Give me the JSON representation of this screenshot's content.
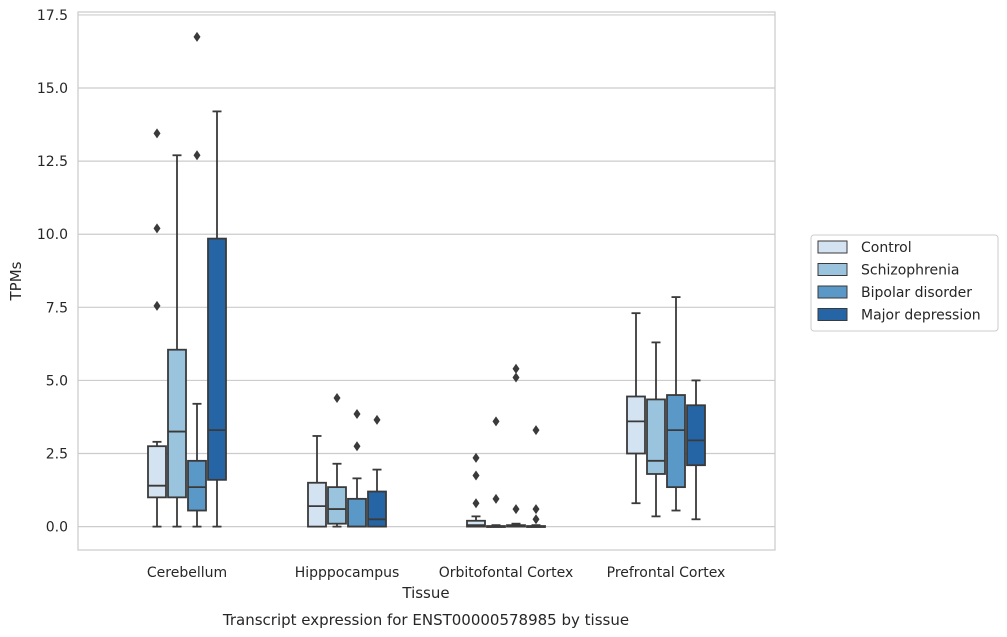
{
  "chart_data": {
    "type": "box",
    "title": "",
    "caption": "Transcript expression for ENST00000578985 by tissue",
    "xlabel": "Tissue",
    "ylabel": "TPMs",
    "ylim": [
      -0.8,
      17.6
    ],
    "yticks": [
      "0.0",
      "2.5",
      "5.0",
      "7.5",
      "10.0",
      "12.5",
      "15.0",
      "17.5"
    ],
    "grid": "horizontal",
    "legend_position": "right",
    "categories": [
      "Cerebellum",
      "Hipppocampus",
      "Orbitofontal Cortex",
      "Prefrontal Cortex"
    ],
    "series": [
      {
        "name": "Control",
        "color": "#d4e3f2",
        "boxes": [
          {
            "whisker_low": 0.0,
            "q1": 1.0,
            "median": 1.4,
            "q3": 2.75,
            "whisker_high": 2.9,
            "outliers": [
              7.55,
              10.2,
              13.45
            ]
          },
          {
            "whisker_low": 0.0,
            "q1": 0.0,
            "median": 0.7,
            "q3": 1.5,
            "whisker_high": 3.1,
            "outliers": []
          },
          {
            "whisker_low": 0.0,
            "q1": 0.0,
            "median": 0.05,
            "q3": 0.2,
            "whisker_high": 0.35,
            "outliers": [
              0.8,
              1.75,
              2.35
            ]
          },
          {
            "whisker_low": 0.8,
            "q1": 2.5,
            "median": 3.6,
            "q3": 4.45,
            "whisker_high": 7.3,
            "outliers": []
          }
        ]
      },
      {
        "name": "Schizophrenia",
        "color": "#9ac4de",
        "boxes": [
          {
            "whisker_low": 0.0,
            "q1": 1.0,
            "median": 3.25,
            "q3": 6.05,
            "whisker_high": 12.7,
            "outliers": []
          },
          {
            "whisker_low": 0.0,
            "q1": 0.1,
            "median": 0.6,
            "q3": 1.35,
            "whisker_high": 2.15,
            "outliers": [
              4.4
            ]
          },
          {
            "whisker_low": 0.0,
            "q1": 0.0,
            "median": 0.0,
            "q3": 0.02,
            "whisker_high": 0.05,
            "outliers": [
              0.95,
              3.6
            ]
          },
          {
            "whisker_low": 0.35,
            "q1": 1.8,
            "median": 2.25,
            "q3": 4.35,
            "whisker_high": 6.3,
            "outliers": []
          }
        ]
      },
      {
        "name": "Bipolar disorder",
        "color": "#5a98c8",
        "boxes": [
          {
            "whisker_low": 0.0,
            "q1": 0.55,
            "median": 1.35,
            "q3": 2.25,
            "whisker_high": 4.2,
            "outliers": [
              12.7,
              16.75
            ]
          },
          {
            "whisker_low": 0.0,
            "q1": 0.0,
            "median": 0.0,
            "q3": 0.95,
            "whisker_high": 1.65,
            "outliers": [
              2.75,
              3.85
            ]
          },
          {
            "whisker_low": 0.0,
            "q1": 0.0,
            "median": 0.0,
            "q3": 0.05,
            "whisker_high": 0.1,
            "outliers": [
              0.6,
              5.1,
              5.4
            ]
          },
          {
            "whisker_low": 0.55,
            "q1": 1.35,
            "median": 3.3,
            "q3": 4.5,
            "whisker_high": 7.85,
            "outliers": []
          }
        ]
      },
      {
        "name": "Major depression",
        "color": "#2565a6",
        "boxes": [
          {
            "whisker_low": 0.0,
            "q1": 1.6,
            "median": 3.3,
            "q3": 9.85,
            "whisker_high": 14.2,
            "outliers": []
          },
          {
            "whisker_low": 0.0,
            "q1": 0.0,
            "median": 0.25,
            "q3": 1.2,
            "whisker_high": 1.95,
            "outliers": [
              3.65
            ]
          },
          {
            "whisker_low": 0.0,
            "q1": 0.0,
            "median": 0.0,
            "q3": 0.02,
            "whisker_high": 0.05,
            "outliers": [
              0.25,
              0.6,
              3.3
            ]
          },
          {
            "whisker_low": 0.25,
            "q1": 2.1,
            "median": 2.95,
            "q3": 4.15,
            "whisker_high": 5.0,
            "outliers": []
          }
        ]
      }
    ]
  }
}
